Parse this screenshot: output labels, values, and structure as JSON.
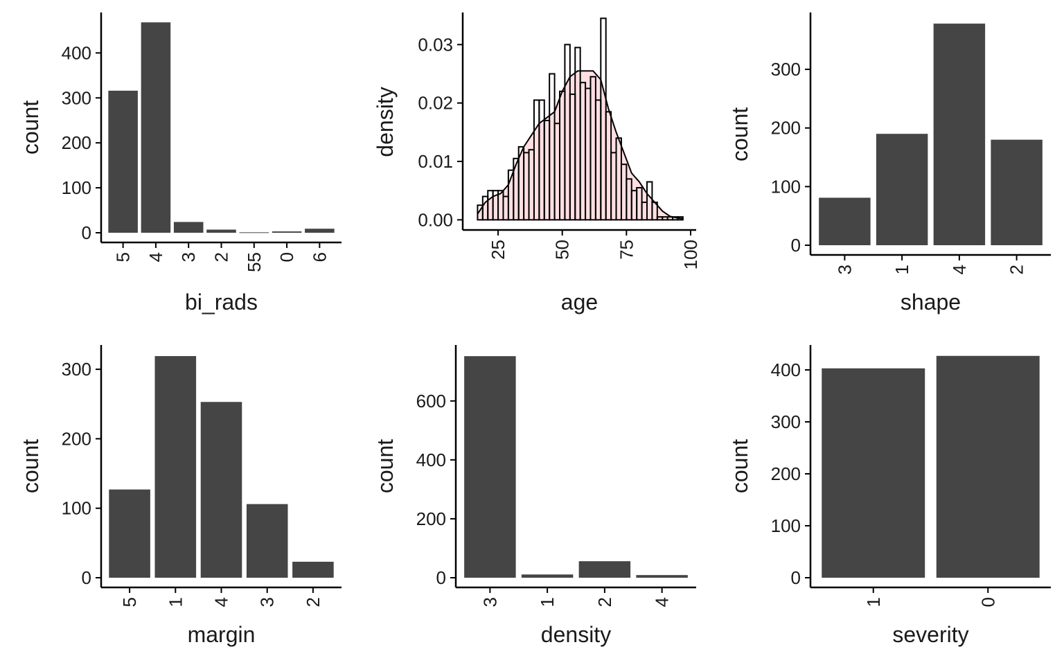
{
  "chart_data": [
    {
      "type": "bar",
      "xlabel": "bi_rads",
      "ylabel": "count",
      "categories": [
        "5",
        "4",
        "3",
        "2",
        "55",
        "0",
        "6"
      ],
      "values": [
        316,
        468,
        24,
        7,
        1,
        3,
        9
      ],
      "ylim": [
        0,
        490
      ],
      "yticks": [
        0,
        100,
        200,
        300,
        400
      ],
      "xtick_rotation": -90,
      "bar_color": "#454545",
      "grid": false
    },
    {
      "type": "bar",
      "subtype": "histogram-with-density",
      "xlabel": "age",
      "ylabel": "density",
      "bins": [
        {
          "x0": 17,
          "x1": 19,
          "value": 0.0025
        },
        {
          "x0": 19,
          "x1": 21,
          "value": 0.004
        },
        {
          "x0": 21,
          "x1": 23,
          "value": 0.005
        },
        {
          "x0": 23,
          "x1": 25,
          "value": 0.005
        },
        {
          "x0": 25,
          "x1": 27,
          "value": 0.005
        },
        {
          "x0": 27,
          "x1": 29,
          "value": 0.004
        },
        {
          "x0": 29,
          "x1": 31,
          "value": 0.0085
        },
        {
          "x0": 31,
          "x1": 33,
          "value": 0.0105
        },
        {
          "x0": 33,
          "x1": 35,
          "value": 0.0125
        },
        {
          "x0": 35,
          "x1": 37,
          "value": 0.0115
        },
        {
          "x0": 37,
          "x1": 39,
          "value": 0.012
        },
        {
          "x0": 39,
          "x1": 41,
          "value": 0.0205
        },
        {
          "x0": 41,
          "x1": 43,
          "value": 0.0205
        },
        {
          "x0": 43,
          "x1": 45,
          "value": 0.017
        },
        {
          "x0": 45,
          "x1": 47,
          "value": 0.025
        },
        {
          "x0": 47,
          "x1": 49,
          "value": 0.0165
        },
        {
          "x0": 49,
          "x1": 51,
          "value": 0.022
        },
        {
          "x0": 51,
          "x1": 53,
          "value": 0.03
        },
        {
          "x0": 53,
          "x1": 55,
          "value": 0.0215
        },
        {
          "x0": 55,
          "x1": 57,
          "value": 0.0295
        },
        {
          "x0": 57,
          "x1": 59,
          "value": 0.0235
        },
        {
          "x0": 59,
          "x1": 61,
          "value": 0.0225
        },
        {
          "x0": 61,
          "x1": 63,
          "value": 0.0245
        },
        {
          "x0": 63,
          "x1": 65,
          "value": 0.0205
        },
        {
          "x0": 65,
          "x1": 67,
          "value": 0.0345
        },
        {
          "x0": 67,
          "x1": 69,
          "value": 0.0185
        },
        {
          "x0": 69,
          "x1": 71,
          "value": 0.0115
        },
        {
          "x0": 71,
          "x1": 73,
          "value": 0.014
        },
        {
          "x0": 73,
          "x1": 75,
          "value": 0.0095
        },
        {
          "x0": 75,
          "x1": 77,
          "value": 0.007
        },
        {
          "x0": 77,
          "x1": 79,
          "value": 0.005
        },
        {
          "x0": 79,
          "x1": 81,
          "value": 0.0055
        },
        {
          "x0": 81,
          "x1": 83,
          "value": 0.003
        },
        {
          "x0": 83,
          "x1": 85,
          "value": 0.0065
        },
        {
          "x0": 85,
          "x1": 87,
          "value": 0.003
        },
        {
          "x0": 87,
          "x1": 89,
          "value": 0.0005
        },
        {
          "x0": 89,
          "x1": 91,
          "value": 0.0005
        },
        {
          "x0": 91,
          "x1": 93,
          "value": 0.0005
        },
        {
          "x0": 93,
          "x1": 95,
          "value": 0.0005
        },
        {
          "x0": 95,
          "x1": 97,
          "value": 0.0005
        }
      ],
      "density_curve": {
        "x": [
          17,
          20,
          23,
          26,
          29,
          32,
          35,
          38,
          41,
          44,
          47,
          50,
          53,
          56,
          59,
          62,
          65,
          68,
          71,
          74,
          77,
          80,
          83,
          86,
          89,
          92,
          95,
          97
        ],
        "y": [
          0.001,
          0.003,
          0.004,
          0.0045,
          0.006,
          0.0095,
          0.0125,
          0.0145,
          0.0165,
          0.0175,
          0.0185,
          0.022,
          0.0245,
          0.0255,
          0.0255,
          0.0255,
          0.024,
          0.019,
          0.015,
          0.0115,
          0.008,
          0.0065,
          0.0045,
          0.003,
          0.0015,
          0.0006,
          0.0003,
          0.0002
        ]
      },
      "xlim": [
        15,
        100
      ],
      "ylim": [
        -0.0015,
        0.0355
      ],
      "xticks": [
        25,
        50,
        75,
        100
      ],
      "yticks": [
        0.0,
        0.01,
        0.02,
        0.03
      ],
      "ytick_labels": [
        "0.00",
        "0.01",
        "0.02",
        "0.03"
      ],
      "xtick_rotation": -90,
      "bar_fill": "none",
      "bar_stroke": "#000000",
      "density_fill": "#ffdfe2",
      "density_stroke": "#000000",
      "grid": false
    },
    {
      "type": "bar",
      "xlabel": "shape",
      "ylabel": "count",
      "categories": [
        "3",
        "1",
        "4",
        "2"
      ],
      "values": [
        81,
        190,
        378,
        180
      ],
      "ylim": [
        0,
        397
      ],
      "yticks": [
        0,
        100,
        200,
        300
      ],
      "xtick_rotation": -90,
      "bar_color": "#454545",
      "grid": false
    },
    {
      "type": "bar",
      "xlabel": "margin",
      "ylabel": "count",
      "categories": [
        "5",
        "1",
        "4",
        "3",
        "2"
      ],
      "values": [
        127,
        319,
        253,
        106,
        23
      ],
      "ylim": [
        0,
        335
      ],
      "yticks": [
        0,
        100,
        200,
        300
      ],
      "xtick_rotation": -90,
      "bar_color": "#454545",
      "grid": false
    },
    {
      "type": "bar",
      "xlabel": "density",
      "ylabel": "count",
      "categories": [
        "3",
        "1",
        "2",
        "4"
      ],
      "values": [
        752,
        11,
        56,
        9
      ],
      "ylim": [
        0,
        790
      ],
      "yticks": [
        0,
        200,
        400,
        600
      ],
      "xtick_rotation": -90,
      "bar_color": "#454545",
      "grid": false
    },
    {
      "type": "bar",
      "xlabel": "severity",
      "ylabel": "count",
      "categories": [
        "1",
        "0"
      ],
      "values": [
        403,
        427
      ],
      "ylim": [
        0,
        448
      ],
      "yticks": [
        0,
        100,
        200,
        300,
        400
      ],
      "xtick_rotation": -90,
      "bar_color": "#454545",
      "grid": false
    }
  ]
}
